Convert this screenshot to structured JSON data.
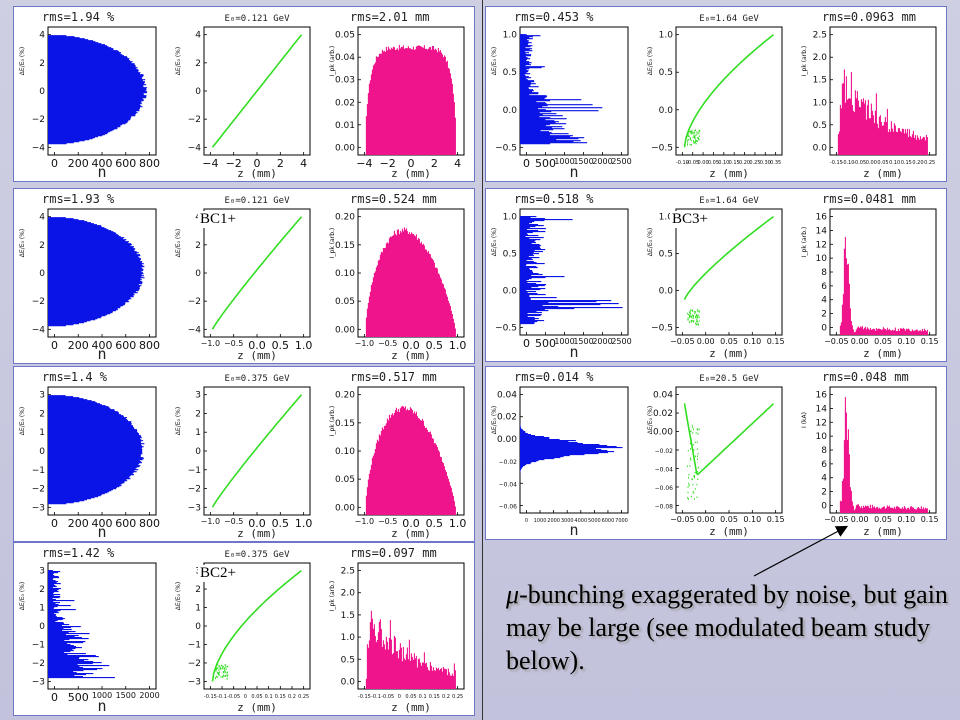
{
  "caption": {
    "mu": "μ",
    "text": "-bunching exaggerated by noise, but gain may be large (see modulated beam study below)."
  },
  "colors": {
    "energy": "#0a14e6",
    "phase": "#33dd22",
    "current": "#f0148c",
    "frame": "#6d76c9"
  },
  "panels": [
    {
      "id": "L1",
      "tag": "",
      "energy": {
        "rms": "rms=1.94 %",
        "xlabel": "n",
        "xticks": [
          "0",
          "200",
          "400",
          "600",
          "800"
        ],
        "yticks": [
          "4",
          "2",
          "0",
          "−2",
          "−4"
        ],
        "ylabel": "ΔE/E₀ (%)",
        "shape": "dome",
        "peak": 0.92
      },
      "phase": {
        "header": "E₀=0.121 GeV",
        "xlabel": "z (mm)",
        "xticks": [
          "−4",
          "−2",
          "0",
          "2",
          "4"
        ],
        "yticks": [
          "4",
          "2",
          "0",
          "−2",
          "−4"
        ],
        "ylabel": "ΔE/E₀ (%)",
        "shape": "linear"
      },
      "current": {
        "rms": "rms=2.01 mm",
        "xlabel": "z (mm)",
        "xticks": [
          "−4",
          "−2",
          "0",
          "2",
          "4"
        ],
        "yticks": [
          "0.05",
          "0.04",
          "0.03",
          "0.02",
          "0.01",
          "0.00"
        ],
        "ylabel": "I_pk (arb.)",
        "shape": "flat"
      }
    },
    {
      "id": "L2",
      "tag": "BC1+",
      "energy": {
        "rms": "rms=1.93 %",
        "xlabel": "n",
        "xticks": [
          "0",
          "200",
          "400",
          "600",
          "800"
        ],
        "yticks": [
          "4",
          "2",
          "0",
          "−2",
          "−4"
        ],
        "ylabel": "ΔE/E₀ (%)",
        "shape": "dome",
        "peak": 0.9
      },
      "phase": {
        "header": "E₀=0.121 GeV",
        "xlabel": "z (mm)",
        "xticks": [
          "−1.0",
          "−0.5",
          "0.0",
          "0.5",
          "1.0"
        ],
        "yticks": [
          "4",
          "2",
          "0",
          "−2",
          "−4"
        ],
        "ylabel": "ΔE/E₀ (%)",
        "shape": "curve-mild"
      },
      "current": {
        "rms": "rms=0.524 mm",
        "xlabel": "z (mm)",
        "xticks": [
          "−1.0",
          "−0.5",
          "0.0",
          "0.5",
          "1.0"
        ],
        "yticks": [
          "0.20",
          "0.15",
          "0.10",
          "0.05",
          "0.00"
        ],
        "ylabel": "I_pk (arb.)",
        "shape": "skewed"
      }
    },
    {
      "id": "L3",
      "tag": "",
      "energy": {
        "rms": "rms=1.4 %",
        "xlabel": "n",
        "xticks": [
          "0",
          "200",
          "400",
          "600",
          "800"
        ],
        "yticks": [
          "3",
          "2",
          "1",
          "0",
          "−1",
          "−2",
          "−3"
        ],
        "ylabel": "ΔE/E₀ (%)",
        "shape": "dome",
        "peak": 0.9
      },
      "phase": {
        "header": "E₀=0.375 GeV",
        "xlabel": "z (mm)",
        "xticks": [
          "−1.0",
          "−0.5",
          "0.0",
          "0.5",
          "1.0"
        ],
        "yticks": [
          "3",
          "2",
          "1",
          "0",
          "−1",
          "−2",
          "−3"
        ],
        "ylabel": "ΔE/E₀ (%)",
        "shape": "curve-mild"
      },
      "current": {
        "rms": "rms=0.517 mm",
        "xlabel": "z (mm)",
        "xticks": [
          "−1.0",
          "−0.5",
          "0.0",
          "0.5",
          "1.0"
        ],
        "yticks": [
          "0.20",
          "0.15",
          "0.10",
          "0.05",
          "0.00"
        ],
        "ylabel": "I_pk (arb.)",
        "shape": "skewed"
      }
    },
    {
      "id": "L4",
      "tag": "BC2+",
      "energy": {
        "rms": "rms=1.42 %",
        "xlabel": "n",
        "xticks": [
          "0",
          "500",
          "1000",
          "1500",
          "2000"
        ],
        "yticks": [
          "3",
          "2",
          "1",
          "0",
          "−1",
          "−2",
          "−3"
        ],
        "ylabel": "ΔE/E₀ (%)",
        "shape": "spiky",
        "peak": 0.7
      },
      "phase": {
        "header": "E₀=0.375 GeV",
        "xlabel": "z (mm)",
        "xticks": [
          "-0.15",
          "-0.1",
          "-0.05",
          "0",
          "0.05",
          "0.1",
          "0.15",
          "0.2",
          "0.25"
        ],
        "yticks": [
          "3",
          "2",
          "1",
          "0",
          "−1",
          "−2",
          "−3"
        ],
        "ylabel": "ΔE/E₀ (%)",
        "shape": "curve-strong"
      },
      "current": {
        "rms": "rms=0.097 mm",
        "xlabel": "z (mm)",
        "xticks": [
          "-0.15",
          "-0.1",
          "-0.05",
          "0",
          "0.05",
          "0.1",
          "0.15",
          "0.2",
          "0.25"
        ],
        "yticks": [
          "2.5",
          "2.0",
          "1.5",
          "1.0",
          "0.5",
          "0.0"
        ],
        "ylabel": "I_pk (arb.)",
        "shape": "decay"
      }
    },
    {
      "id": "R1",
      "tag": "",
      "energy": {
        "rms": "rms=0.453 %",
        "xlabel": "n",
        "xticks": [
          "0",
          "500",
          "1000",
          "1500",
          "2000",
          "2500"
        ],
        "yticks": [
          "1.0",
          "0.5",
          "0.0",
          "−0.5"
        ],
        "ylabel": "ΔE/E₀ (%)",
        "shape": "spiky",
        "peak": 0.45
      },
      "phase": {
        "header": "E₀=1.64 GeV",
        "xlabel": "z (mm)",
        "xticks": [
          "-0.10",
          "-0.05",
          "0.00",
          "0.05",
          "0.10",
          "0.15",
          "0.20",
          "0.25",
          "0.30",
          "0.35"
        ],
        "yticks": [
          "1.0",
          "0.5",
          "0.0",
          "−0.5"
        ],
        "ylabel": "ΔE/E₀ (%)",
        "shape": "curve-strong"
      },
      "current": {
        "rms": "rms=0.0963 mm",
        "xlabel": "z (mm)",
        "xticks": [
          "-0.15",
          "-0.10",
          "-0.05",
          "0.00",
          "0.05",
          "0.10",
          "0.15",
          "0.20",
          "0.25"
        ],
        "yticks": [
          "2.5",
          "2.0",
          "1.5",
          "1.0",
          "0.5",
          "0.0"
        ],
        "ylabel": "I_pk (arb.)",
        "shape": "decay"
      }
    },
    {
      "id": "R2",
      "tag": "BC3+",
      "energy": {
        "rms": "rms=0.518 %",
        "xlabel": "n",
        "xticks": [
          "0",
          "500",
          "1000",
          "1500",
          "2000",
          "2500"
        ],
        "yticks": [
          "1.0",
          "0.5",
          "0.0",
          "−0.5"
        ],
        "ylabel": "ΔE/E₀ (%)",
        "shape": "spiky-low",
        "peak": 0.75
      },
      "phase": {
        "header": "E₀=1.64 GeV",
        "xlabel": "z (mm)",
        "xticks": [
          "−0.05",
          "0.00",
          "0.05",
          "0.10",
          "0.15"
        ],
        "yticks": [
          "1.0",
          "0.5",
          "0.0",
          "−0.5"
        ],
        "ylabel": "ΔE/E₀ (%)",
        "shape": "curve-blob"
      },
      "current": {
        "rms": "rms=0.0481 mm",
        "xlabel": "z (mm)",
        "xticks": [
          "−0.05",
          "0.00",
          "0.05",
          "0.10",
          "0.15"
        ],
        "yticks": [
          "16",
          "14",
          "12",
          "10",
          "8",
          "6",
          "4",
          "2",
          "0"
        ],
        "ylabel": "I_pk (arb.)",
        "shape": "spike"
      }
    },
    {
      "id": "R3",
      "tag": "",
      "energy": {
        "rms": "rms=0.014 %",
        "xlabel": "n",
        "xticks": [
          "0",
          "1000",
          "2000",
          "3000",
          "4000",
          "5000",
          "6000",
          "7000"
        ],
        "yticks": [
          "0.04",
          "0.02",
          "0.00",
          "−0.02",
          "−0.04",
          "−0.06"
        ],
        "ylabel": "ΔE/E₀ (%)",
        "shape": "narrow",
        "peak": 0.6
      },
      "phase": {
        "header": "E₀=20.5 GeV",
        "xlabel": "z (mm)",
        "xticks": [
          "−0.05",
          "0.00",
          "0.05",
          "0.10",
          "0.15"
        ],
        "yticks": [
          "0.04",
          "0.02",
          "0.00",
          "−0.02",
          "−0.04",
          "−0.06",
          "−0.08"
        ],
        "ylabel": "ΔE/E₀ (%)",
        "shape": "vshape"
      },
      "current": {
        "rms": "rms=0.048 mm",
        "xlabel": "z (mm)",
        "xticks": [
          "−0.05",
          "0.00",
          "0.05",
          "0.10",
          "0.15"
        ],
        "yticks": [
          "16",
          "14",
          "12",
          "10",
          "8",
          "6",
          "4",
          "2",
          "0"
        ],
        "ylabel": "I (kA)",
        "shape": "spike"
      }
    }
  ]
}
